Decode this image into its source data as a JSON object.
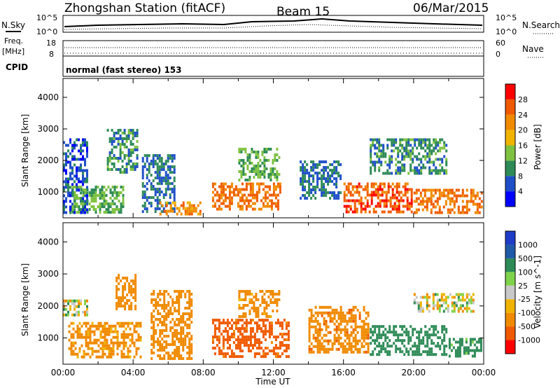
{
  "header": {
    "station": "Zhongshan Station (fitACF)",
    "beam": "Beam 15",
    "date": "06/Mar/2015",
    "cpid_text": "normal (fast stereo) 153"
  },
  "labels": {
    "nsky": "N.Sky",
    "nsearch": "N.Search",
    "freq": "Freq.",
    "mhz": "[MHz]",
    "cpid": "CPID",
    "nave": "Nave",
    "nsky_tick_top": "10^5",
    "nsky_tick_bot": "10^0",
    "freq_tick_top": "18",
    "freq_tick_bot": "8",
    "nave_tick_top": "60",
    "nave_tick_bot": "0"
  },
  "colors": {
    "power": [
      "#0000ff",
      "#1f4fc8",
      "#2e8b57",
      "#7fc241",
      "#f0b400",
      "#f08a00",
      "#f05a00",
      "#ff0000"
    ],
    "velocity": [
      "#ff0000",
      "#f05a00",
      "#f08a00",
      "#f0b400",
      "#c8c8c8",
      "#7fd34a",
      "#2e8b57",
      "#1f5aa8",
      "#1e3cc8"
    ]
  },
  "chart_data": [
    {
      "type": "heatmap",
      "title": "",
      "xlabel": "",
      "ylabel": "Slant Range [km]",
      "colorbar_label": "Power [dB]",
      "colorbar_ticks": [
        "4",
        "8",
        "12",
        "16",
        "20",
        "24",
        "28"
      ],
      "xlim": [
        0,
        24
      ],
      "ylim": [
        180,
        4600
      ],
      "yticks": [
        "1000",
        "2000",
        "3000",
        "4000"
      ],
      "regions": [
        {
          "t0": 0.0,
          "t1": 1.5,
          "r0": 300,
          "r1": 2700,
          "v": 8
        },
        {
          "t0": 0.5,
          "t1": 3.5,
          "r0": 300,
          "r1": 1200,
          "v": 14
        },
        {
          "t0": 2.5,
          "t1": 4.3,
          "r0": 1500,
          "r1": 3000,
          "v": 12
        },
        {
          "t0": 4.5,
          "t1": 6.5,
          "r0": 300,
          "r1": 2200,
          "v": 10
        },
        {
          "t0": 5.5,
          "t1": 8.0,
          "r0": 200,
          "r1": 700,
          "v": 24
        },
        {
          "t0": 8.5,
          "t1": 12.5,
          "r0": 400,
          "r1": 1300,
          "v": 26
        },
        {
          "t0": 10.0,
          "t1": 12.5,
          "r0": 1300,
          "r1": 2400,
          "v": 14
        },
        {
          "t0": 13.5,
          "t1": 16.0,
          "r0": 700,
          "r1": 2000,
          "v": 10
        },
        {
          "t0": 16.0,
          "t1": 20.0,
          "r0": 300,
          "r1": 1300,
          "v": 28
        },
        {
          "t0": 17.5,
          "t1": 22.0,
          "r0": 1500,
          "r1": 2700,
          "v": 12
        },
        {
          "t0": 20.0,
          "t1": 24.0,
          "r0": 300,
          "r1": 1100,
          "v": 26
        }
      ]
    },
    {
      "type": "heatmap",
      "title": "",
      "xlabel": "Time UT",
      "ylabel": "Slant Range [km]",
      "colorbar_label": "Velocity [m s^-1]",
      "colorbar_ticks": [
        "1000",
        "500",
        "100",
        "25",
        "-25",
        "-100",
        "-500",
        "-1000"
      ],
      "xlim": [
        0,
        24
      ],
      "ylim": [
        180,
        4600
      ],
      "xticks": [
        "00:00",
        "04:00",
        "08:00",
        "12:00",
        "16:00",
        "20:00",
        "00:00"
      ],
      "yticks": [
        "1000",
        "2000",
        "3000",
        "4000"
      ],
      "regions": [
        {
          "t0": 0.0,
          "t1": 1.5,
          "r0": 1600,
          "r1": 2200,
          "v": 0
        },
        {
          "t0": 0.3,
          "t1": 4.5,
          "r0": 300,
          "r1": 1500,
          "v": -200
        },
        {
          "t0": 3.0,
          "t1": 4.3,
          "r0": 1800,
          "r1": 3000,
          "v": -300
        },
        {
          "t0": 5.0,
          "t1": 7.5,
          "r0": 300,
          "r1": 2500,
          "v": -250
        },
        {
          "t0": 8.5,
          "t1": 13.0,
          "r0": 300,
          "r1": 1600,
          "v": -600
        },
        {
          "t0": 10.0,
          "t1": 12.5,
          "r0": 1600,
          "r1": 2500,
          "v": -200
        },
        {
          "t0": 14.0,
          "t1": 17.5,
          "r0": 500,
          "r1": 2000,
          "v": -400
        },
        {
          "t0": 17.5,
          "t1": 22.0,
          "r0": 400,
          "r1": 1400,
          "v": 300
        },
        {
          "t0": 20.0,
          "t1": 23.5,
          "r0": 1700,
          "r1": 2400,
          "v": 0
        },
        {
          "t0": 22.0,
          "t1": 24.0,
          "r0": 300,
          "r1": 1000,
          "v": 200
        }
      ]
    }
  ]
}
